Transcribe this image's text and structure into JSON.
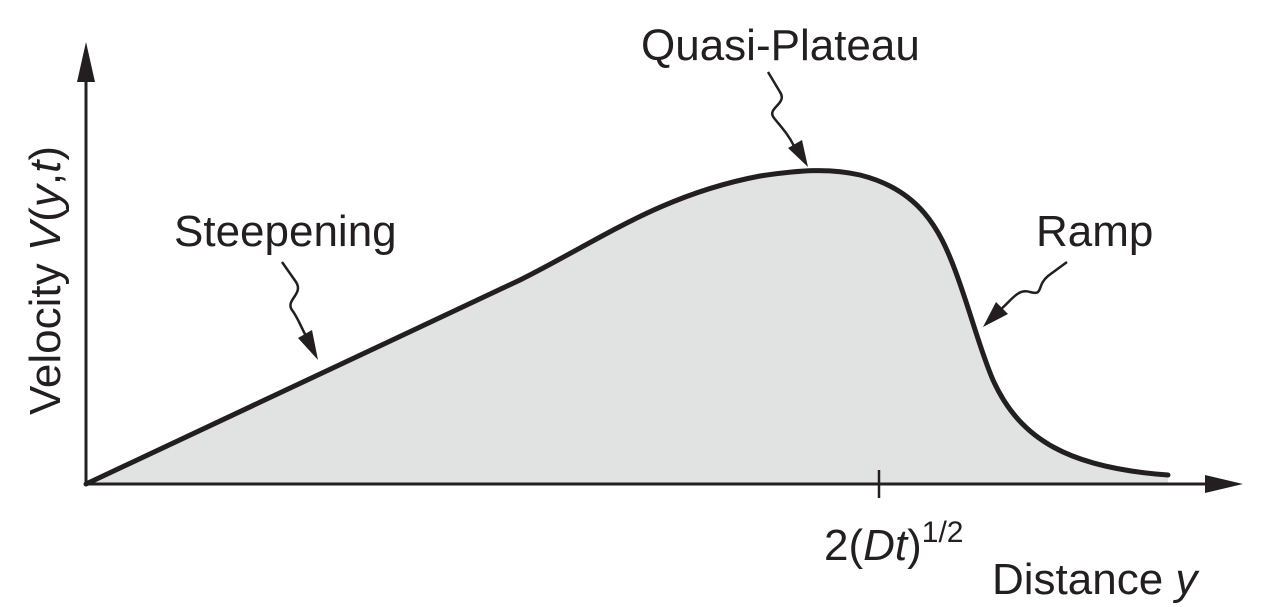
{
  "axes": {
    "y_label_pre": "Velocity ",
    "y_label_V": "V",
    "y_label_open": "(",
    "y_label_y": "y",
    "y_label_comma": ",",
    "y_label_t": "t",
    "y_label_close": ")",
    "x_label_pre": "Distance ",
    "x_label_y": "y",
    "tick_pre": "2(",
    "tick_Dt": "Dt",
    "tick_close": ")",
    "tick_exp": "1/2"
  },
  "annotations": {
    "steepening": "Steepening",
    "plateau": "Quasi-Plateau",
    "ramp": "Ramp"
  },
  "colors": {
    "curve": "#231f20",
    "fill": "#e1e3e3",
    "text": "#231f20"
  }
}
